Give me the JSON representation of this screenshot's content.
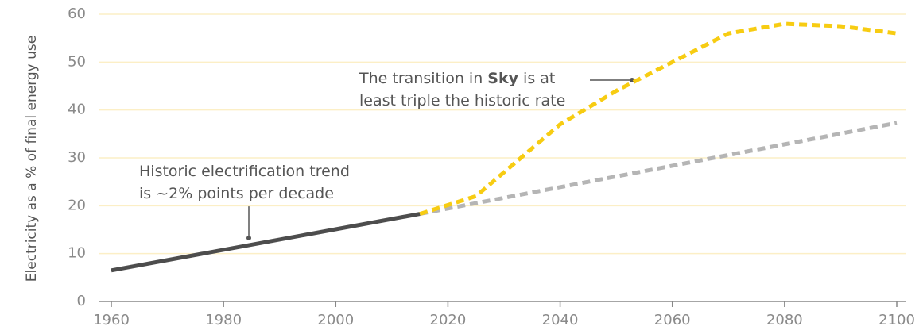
{
  "chart_data": {
    "type": "line",
    "y_label": "Electricity as a % of final energy use",
    "xlim": [
      1960,
      2100
    ],
    "xticks": [
      1960,
      1980,
      2000,
      2020,
      2040,
      2060,
      2080,
      2100
    ],
    "ylim": [
      0,
      60
    ],
    "yticks": [
      0,
      10,
      20,
      30,
      40,
      50,
      60
    ],
    "grid": true,
    "series": [
      {
        "color": "#4d4d4d",
        "dashed": false,
        "x": [
          1960,
          2015
        ],
        "values": [
          6.5,
          18.3
        ]
      },
      {
        "color": "#b5b5b5",
        "dashed": true,
        "x": [
          2015,
          2100
        ],
        "values": [
          18.3,
          37.3
        ]
      },
      {
        "color": "#f7cc12",
        "dashed": true,
        "x": [
          2015,
          2025,
          2030,
          2040,
          2050,
          2060,
          2070,
          2080,
          2090,
          2100
        ],
        "values": [
          18.3,
          22,
          27,
          37,
          44,
          50,
          56,
          58,
          57.5,
          56
        ]
      }
    ],
    "annotations": [
      {
        "lines": [
          [
            "Historic electrification trend"
          ],
          [
            "is ~2% points per decade"
          ]
        ]
      },
      {
        "lines": [
          [
            "The transition in ",
            "Sky",
            " is at"
          ],
          [
            "least triple the historic rate"
          ]
        ]
      }
    ]
  }
}
